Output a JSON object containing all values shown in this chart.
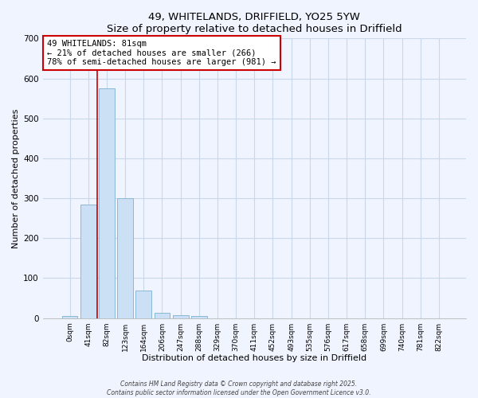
{
  "title": "49, WHITELANDS, DRIFFIELD, YO25 5YW",
  "subtitle": "Size of property relative to detached houses in Driffield",
  "xlabel": "Distribution of detached houses by size in Driffield",
  "ylabel": "Number of detached properties",
  "bar_labels": [
    "0sqm",
    "41sqm",
    "82sqm",
    "123sqm",
    "164sqm",
    "206sqm",
    "247sqm",
    "288sqm",
    "329sqm",
    "370sqm",
    "411sqm",
    "452sqm",
    "493sqm",
    "535sqm",
    "576sqm",
    "617sqm",
    "658sqm",
    "699sqm",
    "740sqm",
    "781sqm",
    "822sqm"
  ],
  "bar_values": [
    5,
    285,
    575,
    300,
    68,
    14,
    8,
    6,
    0,
    0,
    0,
    0,
    0,
    0,
    0,
    0,
    0,
    0,
    0,
    0,
    0
  ],
  "bar_color": "#cce0f5",
  "bar_edge_color": "#8ab8d8",
  "ylim": [
    0,
    700
  ],
  "yticks": [
    0,
    100,
    200,
    300,
    400,
    500,
    600,
    700
  ],
  "property_line_x": 1.5,
  "annotation_title": "49 WHITELANDS: 81sqm",
  "annotation_line1": "← 21% of detached houses are smaller (266)",
  "annotation_line2": "78% of semi-detached houses are larger (981) →",
  "annotation_box_color": "#ffffff",
  "annotation_box_edge": "#cc0000",
  "property_line_color": "#cc0000",
  "footer1": "Contains HM Land Registry data © Crown copyright and database right 2025.",
  "footer2": "Contains public sector information licensed under the Open Government Licence v3.0.",
  "bg_color": "#f0f4ff",
  "grid_color": "#c8d8e8"
}
